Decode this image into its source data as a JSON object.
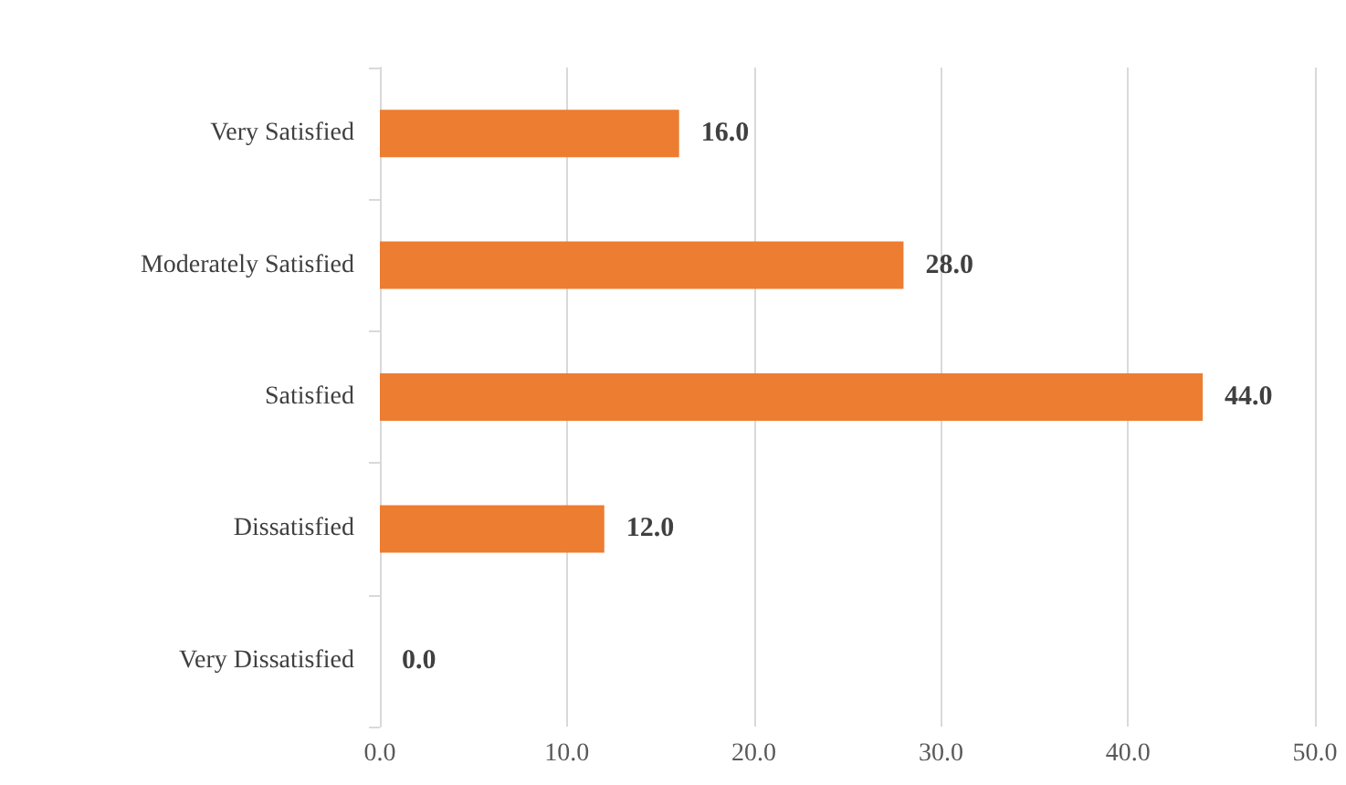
{
  "chart_data": {
    "type": "bar",
    "orientation": "horizontal",
    "categories": [
      "Very Satisfied",
      "Moderately Satisfied",
      "Satisfied",
      "Dissatisfied",
      "Very Dissatisfied"
    ],
    "values": [
      16,
      28,
      44,
      12,
      0
    ],
    "value_labels": [
      "16.0",
      "28.0",
      "44.0",
      "12.0",
      "0.0"
    ],
    "color": "#ed7d31",
    "xlim": [
      0,
      50
    ],
    "xticks": [
      {
        "value": 0,
        "label": "0.0"
      },
      {
        "value": 10,
        "label": "10.0"
      },
      {
        "value": 20,
        "label": "20.0"
      },
      {
        "value": 30,
        "label": "30.0"
      },
      {
        "value": 40,
        "label": "40.0"
      },
      {
        "value": 50,
        "label": "50.0"
      }
    ],
    "grid": "x"
  }
}
